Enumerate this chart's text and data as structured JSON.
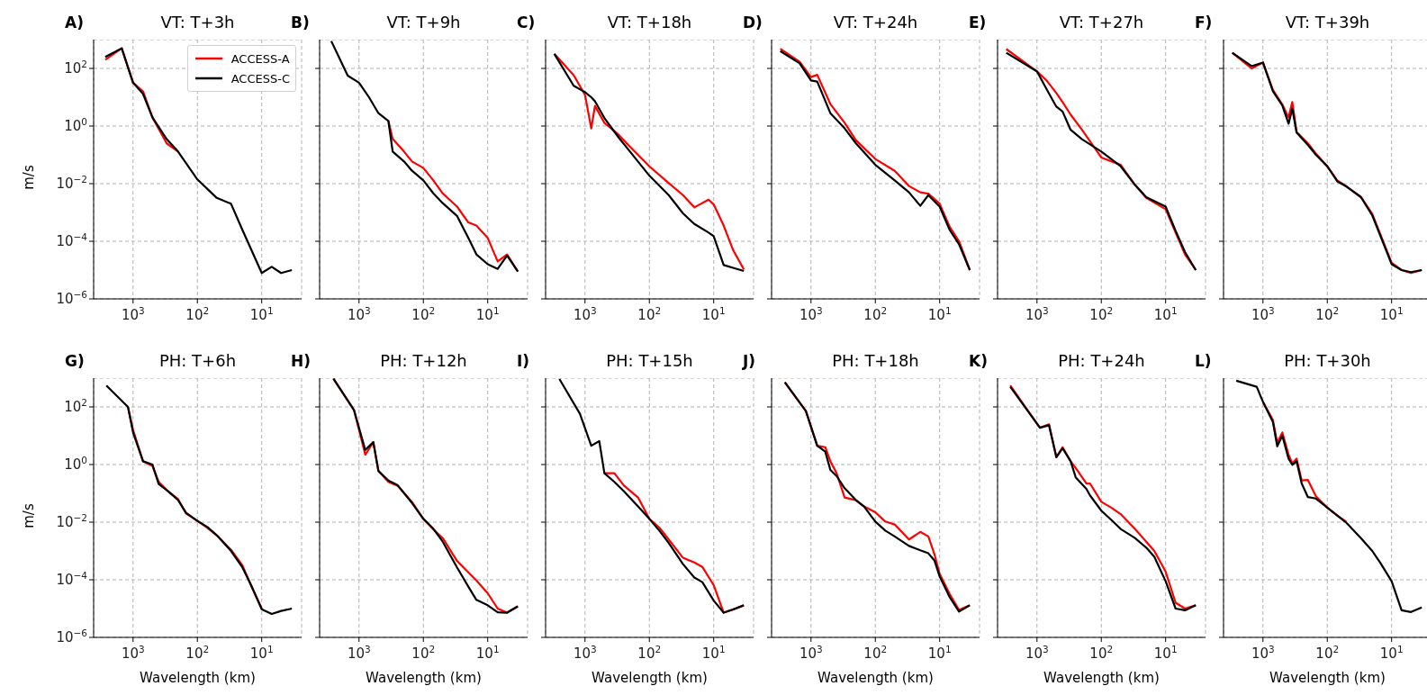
{
  "chart_data": [
    {
      "type": "line",
      "title": "VT: T+3h",
      "annotations": [
        "A)"
      ],
      "ylabel": "m/s",
      "legend": "top right",
      "grid": true,
      "log": "xy",
      "xlim": [
        4100,
        2.4
      ],
      "ylim": [
        1e-06,
        1000
      ],
      "xticks": [
        {
          "value": 1000,
          "label": "10$^{3}$"
        },
        {
          "value": 100,
          "label": "10$^{2}$"
        },
        {
          "value": 10,
          "label": "10$^{1}$"
        }
      ],
      "yticks": [
        {
          "value": 1e-06,
          "label": "10$^{−6}$"
        },
        {
          "value": 0.0001,
          "label": "10$^{−4}$"
        },
        {
          "value": 0.01,
          "label": "10$^{−2}$"
        },
        {
          "value": 1,
          "label": "10$^{0}$"
        },
        {
          "value": 100,
          "label": "10$^{2}$"
        }
      ],
      "x": [
        2700,
        1500,
        1000,
        700,
        500,
        300,
        200,
        100,
        50,
        30,
        20,
        10,
        7,
        5,
        3.4
      ],
      "series": [
        {
          "name": "ACCESS-A",
          "color": "#ff0000",
          "values": [
            200,
            500,
            32,
            16,
            2.0,
            0.25,
            0.13,
            null,
            null,
            null,
            null,
            null,
            null,
            null,
            null
          ]
        },
        {
          "name": "ACCESS-C",
          "color": "#000000",
          "values": [
            250,
            500,
            32,
            13,
            2.0,
            0.35,
            0.13,
            0.014,
            0.0032,
            0.002,
            0.00025,
            7.9e-06,
            1.3e-05,
            7.9e-06,
            1e-05
          ]
        }
      ]
    },
    {
      "type": "line",
      "title": "VT: T+9h",
      "annotations": [
        "B)"
      ],
      "grid": true,
      "log": "xy",
      "tick_labels": "x",
      "xlim": [
        4100,
        2.4
      ],
      "ylim": [
        1e-06,
        1000
      ],
      "xticks": [
        {
          "value": 1000,
          "label": "10$^{3}$"
        },
        {
          "value": 100,
          "label": "10$^{2}$"
        },
        {
          "value": 10,
          "label": "10$^{1}$"
        }
      ],
      "yticks": [
        {
          "value": 1e-06,
          "label": null
        },
        {
          "value": 0.0001,
          "label": null
        },
        {
          "value": 0.01,
          "label": null
        },
        {
          "value": 1,
          "label": null
        },
        {
          "value": 100,
          "label": null
        }
      ],
      "x": [
        2700,
        1500,
        1000,
        700,
        500,
        350,
        300,
        200,
        150,
        100,
        70,
        50,
        30,
        20,
        15,
        10,
        7,
        5,
        3.4
      ],
      "series": [
        {
          "color": "#ff0000",
          "values": [
            null,
            null,
            null,
            null,
            null,
            1.5,
            0.36,
            0.13,
            0.059,
            0.035,
            0.013,
            0.0046,
            0.0016,
            0.00045,
            0.00035,
            0.00013,
            2e-05,
            3.5e-05,
            8.9e-06
          ]
        },
        {
          "color": "#000000",
          "values": [
            890,
            56,
            32,
            10,
            2.8,
            1.5,
            0.13,
            0.059,
            0.028,
            0.013,
            0.0046,
            0.0021,
            0.00076,
            0.00013,
            3.5e-05,
            1.6e-05,
            1.1e-05,
            3.2e-05,
            8.9e-06
          ]
        }
      ]
    },
    {
      "type": "line",
      "title": "VT: T+18h",
      "annotations": [
        "C)"
      ],
      "grid": true,
      "log": "xy",
      "tick_labels": "x",
      "xlim": [
        4100,
        2.4
      ],
      "ylim": [
        1e-06,
        1000
      ],
      "xticks": [
        {
          "value": 1000,
          "label": "10$^{3}$"
        },
        {
          "value": 100,
          "label": "10$^{2}$"
        },
        {
          "value": 10,
          "label": "10$^{1}$"
        }
      ],
      "yticks": [
        {
          "value": 1e-06,
          "label": null
        },
        {
          "value": 0.0001,
          "label": null
        },
        {
          "value": 0.01,
          "label": null
        },
        {
          "value": 1,
          "label": null
        },
        {
          "value": 100,
          "label": null
        }
      ],
      "x": [
        3000,
        1500,
        1000,
        800,
        700,
        500,
        300,
        200,
        100,
        50,
        30,
        20,
        12,
        10,
        7,
        5,
        3.4
      ],
      "series": [
        {
          "color": "#ff0000",
          "values": [
            320,
            58,
            12,
            0.83,
            5.0,
            1.3,
            0.5,
            0.19,
            0.04,
            0.0105,
            0.004,
            0.0015,
            0.0028,
            0.0019,
            0.00035,
            5e-05,
            1.05e-05
          ]
        },
        {
          "color": "#000000",
          "values": [
            320,
            25,
            15,
            10,
            7.2,
            1.9,
            0.4,
            0.13,
            0.019,
            0.004,
            0.00093,
            0.0004,
            0.0002,
            0.00015,
            1.5e-05,
            1.2e-05,
            9.3e-06
          ]
        }
      ]
    },
    {
      "type": "line",
      "title": "VT: T+24h",
      "annotations": [
        "D)"
      ],
      "grid": true,
      "log": "xy",
      "tick_labels": "x",
      "xlim": [
        4100,
        2.4
      ],
      "ylim": [
        1e-06,
        1000
      ],
      "xticks": [
        {
          "value": 1000,
          "label": "10$^{3}$"
        },
        {
          "value": 100,
          "label": "10$^{2}$"
        },
        {
          "value": 10,
          "label": "10$^{1}$"
        }
      ],
      "yticks": [
        {
          "value": 1e-06,
          "label": null
        },
        {
          "value": 0.0001,
          "label": null
        },
        {
          "value": 0.01,
          "label": null
        },
        {
          "value": 1,
          "label": null
        },
        {
          "value": 100,
          "label": null
        }
      ],
      "x": [
        3000,
        1500,
        1000,
        800,
        500,
        300,
        200,
        100,
        50,
        30,
        20,
        15,
        10,
        7,
        5,
        3.4
      ],
      "series": [
        {
          "color": "#ff0000",
          "values": [
            480,
            170,
            50,
            60,
            5.8,
            1.3,
            0.32,
            0.072,
            0.028,
            0.0083,
            0.005,
            0.0045,
            0.002,
            0.00032,
            0.0001,
            1e-05
          ]
        },
        {
          "color": "#000000",
          "values": [
            400,
            150,
            38,
            35,
            2.8,
            0.83,
            0.25,
            0.045,
            0.013,
            0.005,
            0.0017,
            0.004,
            0.0016,
            0.00025,
            7.9e-05,
            1e-05
          ]
        }
      ]
    },
    {
      "type": "line",
      "title": "VT: T+27h",
      "annotations": [
        "E)"
      ],
      "grid": true,
      "log": "xy",
      "tick_labels": "x",
      "xlim": [
        4100,
        2.4
      ],
      "ylim": [
        1e-06,
        1000
      ],
      "xticks": [
        {
          "value": 1000,
          "label": "10$^{3}$"
        },
        {
          "value": 100,
          "label": "10$^{2}$"
        },
        {
          "value": 10,
          "label": "10$^{1}$"
        }
      ],
      "yticks": [
        {
          "value": 1e-06,
          "label": null
        },
        {
          "value": 0.0001,
          "label": null
        },
        {
          "value": 0.01,
          "label": null
        },
        {
          "value": 1,
          "label": null
        },
        {
          "value": 100,
          "label": null
        }
      ],
      "x": [
        3000,
        1000,
        700,
        500,
        400,
        300,
        200,
        100,
        50,
        30,
        20,
        10,
        7,
        5,
        3.4
      ],
      "series": [
        {
          "color": "#ff0000",
          "values": [
            470,
            79,
            37,
            14,
            6.8,
            2.5,
            0.74,
            0.081,
            0.045,
            0.0091,
            0.0032,
            0.0013,
            0.0002,
            3.5e-05,
            1e-05
          ]
        },
        {
          "color": "#000000",
          "values": [
            350,
            79,
            18,
            4.7,
            3.2,
            0.74,
            0.35,
            0.13,
            0.04,
            0.0091,
            0.0034,
            0.0016,
            0.00023,
            4.2e-05,
            1e-05
          ]
        }
      ]
    },
    {
      "type": "line",
      "title": "VT: T+39h",
      "annotations": [
        "F)"
      ],
      "grid": true,
      "log": "xy",
      "tick_labels": "x",
      "xlim": [
        4100,
        2.4
      ],
      "ylim": [
        1e-06,
        1000
      ],
      "xticks": [
        {
          "value": 1000,
          "label": "10$^{3}$"
        },
        {
          "value": 100,
          "label": "10$^{2}$"
        },
        {
          "value": 10,
          "label": "10$^{1}$"
        }
      ],
      "yticks": [
        {
          "value": 1e-06,
          "label": null
        },
        {
          "value": 0.0001,
          "label": null
        },
        {
          "value": 0.01,
          "label": null
        },
        {
          "value": 1,
          "label": null
        },
        {
          "value": 100,
          "label": null
        }
      ],
      "x": [
        3000,
        1500,
        1000,
        700,
        500,
        400,
        350,
        300,
        200,
        150,
        100,
        70,
        50,
        30,
        20,
        10,
        7,
        5,
        3.4
      ],
      "series": [
        {
          "color": "#ff0000",
          "values": [
            350,
            100,
            160,
            18,
            5.6,
            2.0,
            6.8,
            0.63,
            0.25,
            0.11,
            0.04,
            0.013,
            0.0079,
            0.0035,
            0.00089,
            1.8e-05,
            1e-05,
            7.9e-06,
            1e-05
          ]
        },
        {
          "color": "#000000",
          "values": [
            350,
            120,
            160,
            16,
            5.2,
            1.2,
            4.0,
            0.59,
            0.22,
            0.1,
            0.04,
            0.012,
            0.0079,
            0.0034,
            0.00079,
            1.6e-05,
            1e-05,
            8.5e-06,
            1e-05
          ]
        }
      ]
    },
    {
      "type": "line",
      "title": "PH: T+6h",
      "annotations": [
        "G)"
      ],
      "xlabel": "Wavelength (km)",
      "ylabel": "m/s",
      "grid": true,
      "log": "xy",
      "xlim": [
        4100,
        2.4
      ],
      "ylim": [
        1e-06,
        1000
      ],
      "xticks": [
        {
          "value": 1000,
          "label": "10$^{3}$"
        },
        {
          "value": 100,
          "label": "10$^{2}$"
        },
        {
          "value": 10,
          "label": "10$^{1}$"
        }
      ],
      "yticks": [
        {
          "value": 1e-06,
          "label": "10$^{−6}$"
        },
        {
          "value": 0.0001,
          "label": "10$^{−4}$"
        },
        {
          "value": 0.01,
          "label": "10$^{−2}$"
        },
        {
          "value": 1,
          "label": "10$^{0}$"
        },
        {
          "value": 100,
          "label": "10$^{2}$"
        }
      ],
      "x": [
        2600,
        1200,
        1000,
        700,
        500,
        400,
        300,
        200,
        150,
        100,
        70,
        50,
        30,
        20,
        15,
        10,
        7,
        5,
        3.4
      ],
      "series": [
        {
          "color": "#ff0000",
          "values": [
            null,
            100,
            16,
            1.3,
            0.89,
            0.25,
            0.13,
            0.063,
            0.02,
            0.011,
            0.0063,
            0.0035,
            0.0011,
            0.00032,
            7.1e-05,
            1e-05,
            null,
            null,
            null
          ]
        },
        {
          "color": "#000000",
          "values": [
            550,
            100,
            13,
            1.3,
            1.0,
            0.21,
            0.13,
            0.059,
            0.021,
            0.011,
            0.0068,
            0.0035,
            0.001,
            0.00027,
            7.4e-05,
            9.5e-06,
            6.5e-06,
            8.3e-06,
            1e-05
          ]
        }
      ]
    },
    {
      "type": "line",
      "title": "PH: T+12h",
      "annotations": [
        "H)"
      ],
      "xlabel": "Wavelength (km)",
      "grid": true,
      "log": "xy",
      "tick_labels": "x",
      "xlim": [
        4100,
        2.4
      ],
      "ylim": [
        1e-06,
        1000
      ],
      "xticks": [
        {
          "value": 1000,
          "label": "10$^{3}$"
        },
        {
          "value": 100,
          "label": "10$^{2}$"
        },
        {
          "value": 10,
          "label": "10$^{1}$"
        }
      ],
      "yticks": [
        {
          "value": 1e-06,
          "label": null
        },
        {
          "value": 0.0001,
          "label": null
        },
        {
          "value": 0.01,
          "label": null
        },
        {
          "value": 1,
          "label": null
        },
        {
          "value": 100,
          "label": null
        }
      ],
      "x": [
        2500,
        1200,
        800,
        600,
        500,
        350,
        250,
        150,
        100,
        70,
        50,
        30,
        20,
        15,
        10,
        7,
        5,
        3.4
      ],
      "series": [
        {
          "color": "#ff0000",
          "values": [
            950,
            79,
            2.2,
            6.0,
            0.6,
            0.25,
            0.18,
            0.05,
            0.013,
            0.0056,
            0.0028,
            0.00045,
            0.00018,
            9.5e-05,
            3.4e-05,
            1e-05,
            7.2e-06,
            1.2e-05
          ]
        },
        {
          "color": "#000000",
          "values": [
            950,
            79,
            3.2,
            6.0,
            0.6,
            0.28,
            0.19,
            0.046,
            0.013,
            0.0059,
            0.0021,
            0.00027,
            5.8e-05,
            2e-05,
            1.3e-05,
            7.4e-06,
            7.2e-06,
            1.2e-05
          ]
        }
      ]
    },
    {
      "type": "line",
      "title": "PH: T+15h",
      "annotations": [
        "I)"
      ],
      "xlabel": "Wavelength (km)",
      "grid": true,
      "log": "xy",
      "tick_labels": "x",
      "xlim": [
        4100,
        2.4
      ],
      "ylim": [
        1e-06,
        1000
      ],
      "xticks": [
        {
          "value": 1000,
          "label": "10$^{3}$"
        },
        {
          "value": 100,
          "label": "10$^{2}$"
        },
        {
          "value": 10,
          "label": "10$^{1}$"
        }
      ],
      "yticks": [
        {
          "value": 1e-06,
          "label": null
        },
        {
          "value": 0.0001,
          "label": null
        },
        {
          "value": 0.01,
          "label": null
        },
        {
          "value": 1,
          "label": null
        },
        {
          "value": 100,
          "label": null
        }
      ],
      "x": [
        2500,
        1200,
        800,
        600,
        500,
        350,
        250,
        150,
        100,
        70,
        50,
        30,
        20,
        15,
        10,
        7,
        5,
        3.4
      ],
      "series": [
        {
          "color": "#ff0000",
          "values": [
            null,
            null,
            null,
            null,
            0.5,
            0.5,
            0.19,
            0.072,
            0.013,
            0.0065,
            0.0025,
            0.00058,
            0.0004,
            0.00028,
            6.5e-05,
            7.2e-06,
            9.3e-06,
            1.3e-05
          ]
        },
        {
          "color": "#000000",
          "values": [
            930,
            58,
            4.5,
            6.5,
            0.5,
            0.25,
            0.12,
            0.035,
            0.013,
            0.0051,
            0.0019,
            0.00035,
            0.00012,
            8.3e-05,
            1.9e-05,
            7.2e-06,
            9.3e-06,
            1.3e-05
          ]
        }
      ]
    },
    {
      "type": "line",
      "title": "PH: T+18h",
      "annotations": [
        "J)"
      ],
      "xlabel": "Wavelength (km)",
      "grid": true,
      "log": "xy",
      "tick_labels": "x",
      "xlim": [
        4100,
        2.4
      ],
      "ylim": [
        1e-06,
        1000
      ],
      "xticks": [
        {
          "value": 1000,
          "label": "10$^{3}$"
        },
        {
          "value": 100,
          "label": "10$^{2}$"
        },
        {
          "value": 10,
          "label": "10$^{1}$"
        }
      ],
      "yticks": [
        {
          "value": 1e-06,
          "label": null
        },
        {
          "value": 0.0001,
          "label": null
        },
        {
          "value": 0.01,
          "label": null
        },
        {
          "value": 1,
          "label": null
        },
        {
          "value": 100,
          "label": null
        }
      ],
      "x": [
        2550,
        1200,
        800,
        600,
        500,
        400,
        300,
        200,
        150,
        100,
        70,
        50,
        30,
        20,
        15,
        12,
        10,
        7,
        5,
        3.4
      ],
      "series": [
        {
          "color": "#ff0000",
          "values": [
            720,
            72,
            4.5,
            4.0,
            1.3,
            0.5,
            0.072,
            0.058,
            0.035,
            0.022,
            0.0105,
            0.0083,
            0.0025,
            0.0046,
            0.0032,
            0.00074,
            0.00016,
            3.2e-05,
            8.9e-06,
            1.3e-05
          ]
        },
        {
          "color": "#000000",
          "values": [
            720,
            72,
            4.5,
            2.8,
            0.65,
            0.4,
            0.15,
            0.058,
            0.035,
            0.0105,
            0.0051,
            0.0032,
            0.0015,
            0.00105,
            0.00083,
            0.00046,
            0.00013,
            2.5e-05,
            7.9e-06,
            1.3e-05
          ]
        }
      ]
    },
    {
      "type": "line",
      "title": "PH: T+24h",
      "annotations": [
        "K)"
      ],
      "xlabel": "Wavelength (km)",
      "grid": true,
      "log": "xy",
      "tick_labels": "x",
      "xlim": [
        4100,
        2.4
      ],
      "ylim": [
        1e-06,
        1000
      ],
      "xticks": [
        {
          "value": 1000,
          "label": "10$^{3}$"
        },
        {
          "value": 100,
          "label": "10$^{2}$"
        },
        {
          "value": 10,
          "label": "10$^{1}$"
        }
      ],
      "yticks": [
        {
          "value": 1e-06,
          "label": null
        },
        {
          "value": 0.0001,
          "label": null
        },
        {
          "value": 0.01,
          "label": null
        },
        {
          "value": 1,
          "label": null
        },
        {
          "value": 100,
          "label": null
        }
      ],
      "x": [
        2600,
        900,
        650,
        500,
        400,
        300,
        250,
        170,
        150,
        100,
        70,
        50,
        30,
        20,
        15,
        10,
        7,
        5,
        3.4
      ],
      "series": [
        {
          "color": "#ff0000",
          "values": [
            560,
            19,
            25,
            1.8,
            4.0,
            1.3,
            0.76,
            0.22,
            0.22,
            0.051,
            0.032,
            0.019,
            0.0058,
            0.0021,
            0.001,
            0.00019,
            1.6e-05,
            1e-05,
            1.3e-05
          ]
        },
        {
          "color": "#000000",
          "values": [
            500,
            19,
            23,
            1.8,
            3.7,
            1.3,
            0.36,
            0.14,
            0.085,
            0.025,
            0.012,
            0.0058,
            0.0028,
            0.0013,
            0.00063,
            8.9e-05,
            1e-05,
            8.7e-06,
            1.3e-05
          ]
        }
      ]
    },
    {
      "type": "line",
      "title": "PH: T+30h",
      "annotations": [
        "L)"
      ],
      "xlabel": "Wavelength (km)",
      "grid": true,
      "log": "xy",
      "tick_labels": "x",
      "xlim": [
        4100,
        2.4
      ],
      "ylim": [
        1e-06,
        1000
      ],
      "xticks": [
        {
          "value": 1000,
          "label": "10$^{3}$"
        },
        {
          "value": 100,
          "label": "10$^{2}$"
        },
        {
          "value": 10,
          "label": "10$^{1}$"
        }
      ],
      "yticks": [
        {
          "value": 1e-06,
          "label": null
        },
        {
          "value": 0.0001,
          "label": null
        },
        {
          "value": 0.01,
          "label": null
        },
        {
          "value": 1,
          "label": null
        },
        {
          "value": 100,
          "label": null
        }
      ],
      "x": [
        2600,
        1250,
        1000,
        700,
        600,
        500,
        400,
        350,
        300,
        250,
        200,
        150,
        100,
        70,
        50,
        30,
        20,
        15,
        10,
        7,
        5,
        3.4
      ],
      "series": [
        {
          "color": "#ff0000",
          "values": [
            null,
            null,
            150,
            35,
            5.6,
            13,
            2.2,
            1.1,
            1.6,
            0.28,
            0.29,
            0.079,
            0.032,
            0.017,
            0.01,
            null,
            null,
            null,
            null,
            null,
            null,
            null
          ]
        },
        {
          "color": "#000000",
          "values": [
            810,
            500,
            150,
            30,
            4.3,
            10,
            1.6,
            0.98,
            1.3,
            0.22,
            0.074,
            0.066,
            0.032,
            0.017,
            0.0093,
            0.0028,
            0.001,
            0.00039,
            8.9e-05,
            8.7e-06,
            7.6e-06,
            1.1e-05
          ]
        }
      ]
    }
  ]
}
